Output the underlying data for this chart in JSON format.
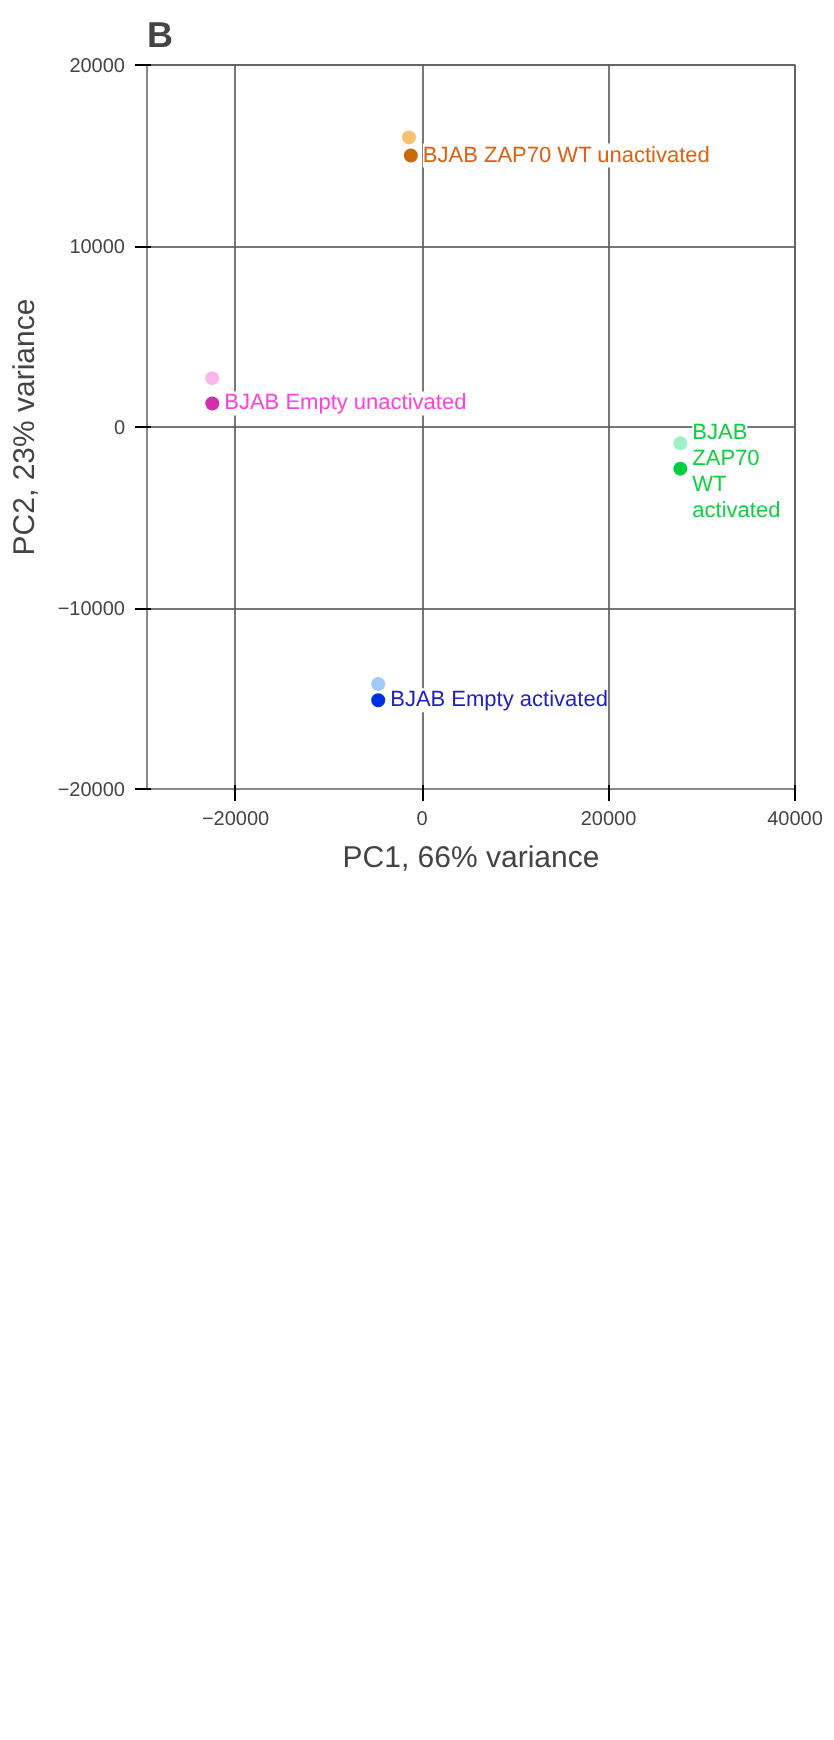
{
  "chart_data": {
    "type": "scatter",
    "xlabel": "PC1, 66% variance",
    "ylabel": "PC2, 23% variance",
    "series": [
      {
        "name": "BJAB ZAP70 WT unactivated",
        "color": "#e06010",
        "x": [
          -1400,
          -1200
        ],
        "values": [
          16000,
          15000
        ],
        "colors": [
          "#f8c070",
          "#c86a0a"
        ]
      },
      {
        "name": "BJAB ZAP70 WT activated",
        "color": "#10d040",
        "x": [
          27700,
          27700
        ],
        "values": [
          -900,
          -2300
        ],
        "colors": [
          "#a0f0c8",
          "#00d040"
        ]
      },
      {
        "name": "BJAB Empty activated",
        "color": "#2020c0",
        "x": [
          -4700,
          -4700
        ],
        "values": [
          -14200,
          -15100
        ],
        "colors": [
          "#a0c8f8",
          "#0030e0"
        ]
      },
      {
        "name": "BJAB Empty unactivated",
        "color": "#ff40e0",
        "x": [
          -22500,
          -22500
        ],
        "values": [
          2700,
          1300
        ],
        "colors": [
          "#f8b8e8",
          "#d030a8"
        ]
      }
    ],
    "marker": "circle",
    "xlim": [
      -29500,
      40000
    ],
    "xticks": [
      -20000,
      0,
      20000,
      40000
    ],
    "ylim": [
      -20000,
      20000
    ],
    "yticks": [
      -20000,
      -10000,
      0,
      10000,
      20000
    ],
    "grid": true,
    "annotations": [
      "B"
    ]
  }
}
